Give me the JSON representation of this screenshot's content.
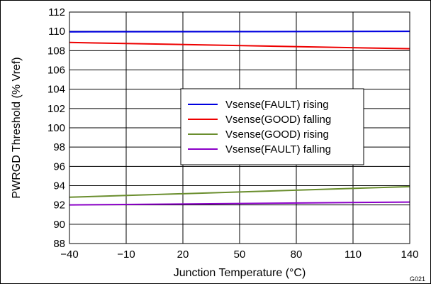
{
  "chart_data": {
    "type": "line",
    "xlabel": "Junction Temperature (°C)",
    "ylabel": "PWRGD Threshold (% Vref)",
    "xlim": [
      -40,
      140
    ],
    "ylim": [
      88,
      112
    ],
    "xticks": [
      -40,
      -10,
      20,
      50,
      80,
      110,
      140
    ],
    "xtick_labels": [
      "−40",
      "−10",
      "20",
      "50",
      "80",
      "110",
      "140"
    ],
    "yticks": [
      88,
      90,
      92,
      94,
      96,
      98,
      100,
      102,
      104,
      106,
      108,
      110,
      112
    ],
    "grid": true,
    "legend_position": "center-right",
    "series": [
      {
        "name": "Vsense(FAULT) rising",
        "color": "#0000e0",
        "x": [
          -40,
          140
        ],
        "y": [
          109.95,
          110.0
        ]
      },
      {
        "name": "Vsense(GOOD) falling",
        "color": "#ee0000",
        "x": [
          -40,
          140
        ],
        "y": [
          108.85,
          108.2
        ]
      },
      {
        "name": "Vsense(GOOD) rising",
        "color": "#6a8e2e",
        "x": [
          -40,
          140
        ],
        "y": [
          92.8,
          93.9
        ]
      },
      {
        "name": "Vsense(FAULT) falling",
        "color": "#8b00c8",
        "x": [
          -40,
          140
        ],
        "y": [
          92.0,
          92.3
        ]
      }
    ],
    "figure_code": "G021"
  }
}
